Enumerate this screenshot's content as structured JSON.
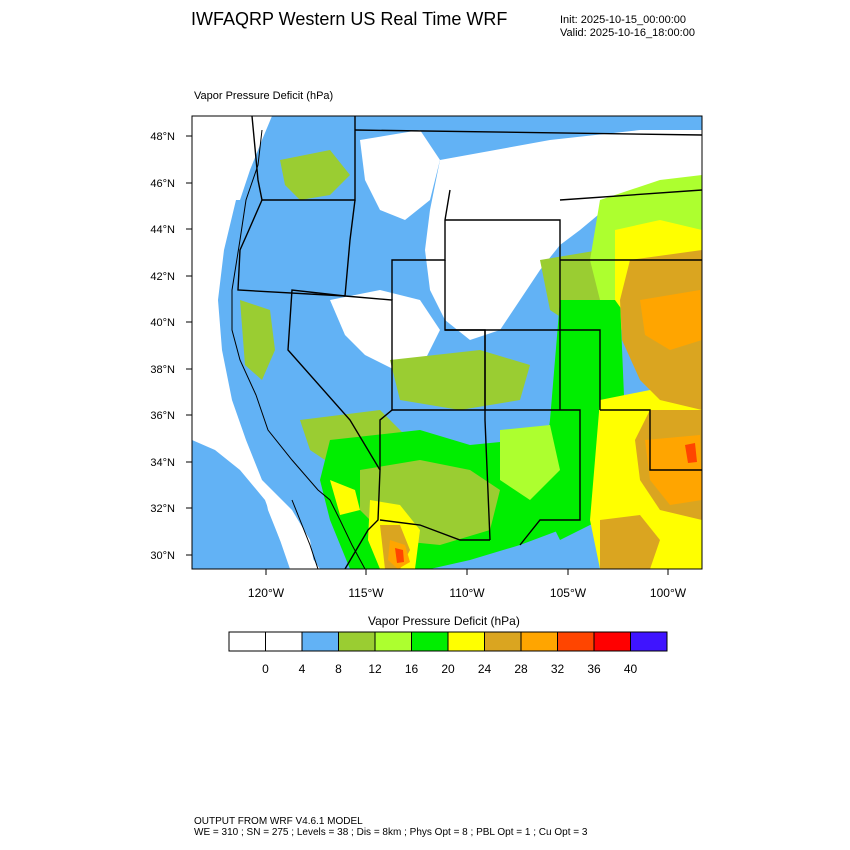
{
  "header": {
    "title": "IWFAQRP Western US Real Time WRF",
    "init": "Init: 2025-10-15_00:00:00",
    "valid": "Valid: 2025-10-16_18:00:00"
  },
  "plot": {
    "label": "Vapor Pressure Deficit   (hPa)",
    "lat_labels": [
      "48°N",
      "46°N",
      "44°N",
      "42°N",
      "40°N",
      "38°N",
      "36°N",
      "34°N",
      "32°N",
      "30°N"
    ],
    "lon_labels": [
      "120°W",
      "115°W",
      "110°W",
      "105°W",
      "100°W"
    ]
  },
  "colorbar": {
    "title": "Vapor Pressure Deficit  (hPa)",
    "ticks": [
      "0",
      "4",
      "8",
      "12",
      "16",
      "20",
      "24",
      "28",
      "32",
      "36",
      "40"
    ],
    "colors": [
      "#ffffff",
      "#ffffff",
      "#62b2f5",
      "#9acd32",
      "#adff2f",
      "#00ee00",
      "#ffff00",
      "#daa520",
      "#ffa500",
      "#ff4500",
      "#ff0000",
      "#3f14ff"
    ]
  },
  "footer": {
    "line1": "OUTPUT FROM WRF V4.6.1 MODEL",
    "line2": "WE = 310 ; SN = 275 ; Levels = 38 ; Dis = 8km ; Phys Opt = 8 ; PBL Opt = 1 ; Cu Opt = 3"
  }
}
